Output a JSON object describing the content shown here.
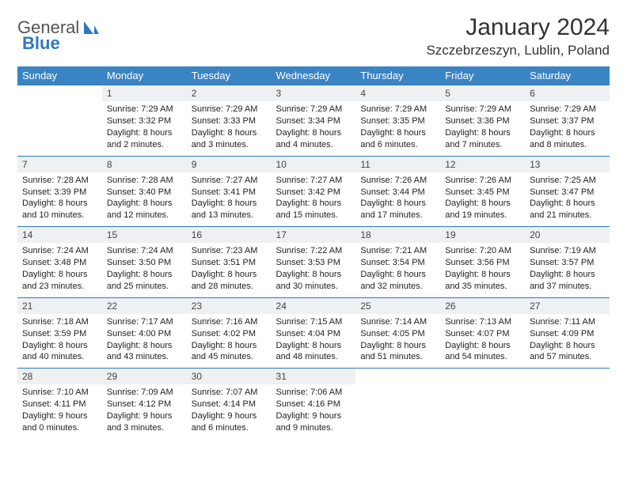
{
  "brand": {
    "word1": "General",
    "word2": "Blue"
  },
  "header": {
    "title": "January 2024",
    "location": "Szczebrzeszyn, Lublin, Poland"
  },
  "colors": {
    "header_bg": "#3b84c4",
    "header_text": "#ffffff",
    "daynum_bg": "#eef0f2",
    "rule": "#2f78c2",
    "text": "#222222",
    "page_bg": "#ffffff"
  },
  "weekdays": [
    "Sunday",
    "Monday",
    "Tuesday",
    "Wednesday",
    "Thursday",
    "Friday",
    "Saturday"
  ],
  "weeks": [
    [
      null,
      {
        "n": "1",
        "sr": "7:29 AM",
        "ss": "3:32 PM",
        "dl": "8 hours and 2 minutes."
      },
      {
        "n": "2",
        "sr": "7:29 AM",
        "ss": "3:33 PM",
        "dl": "8 hours and 3 minutes."
      },
      {
        "n": "3",
        "sr": "7:29 AM",
        "ss": "3:34 PM",
        "dl": "8 hours and 4 minutes."
      },
      {
        "n": "4",
        "sr": "7:29 AM",
        "ss": "3:35 PM",
        "dl": "8 hours and 6 minutes."
      },
      {
        "n": "5",
        "sr": "7:29 AM",
        "ss": "3:36 PM",
        "dl": "8 hours and 7 minutes."
      },
      {
        "n": "6",
        "sr": "7:29 AM",
        "ss": "3:37 PM",
        "dl": "8 hours and 8 minutes."
      }
    ],
    [
      {
        "n": "7",
        "sr": "7:28 AM",
        "ss": "3:39 PM",
        "dl": "8 hours and 10 minutes."
      },
      {
        "n": "8",
        "sr": "7:28 AM",
        "ss": "3:40 PM",
        "dl": "8 hours and 12 minutes."
      },
      {
        "n": "9",
        "sr": "7:27 AM",
        "ss": "3:41 PM",
        "dl": "8 hours and 13 minutes."
      },
      {
        "n": "10",
        "sr": "7:27 AM",
        "ss": "3:42 PM",
        "dl": "8 hours and 15 minutes."
      },
      {
        "n": "11",
        "sr": "7:26 AM",
        "ss": "3:44 PM",
        "dl": "8 hours and 17 minutes."
      },
      {
        "n": "12",
        "sr": "7:26 AM",
        "ss": "3:45 PM",
        "dl": "8 hours and 19 minutes."
      },
      {
        "n": "13",
        "sr": "7:25 AM",
        "ss": "3:47 PM",
        "dl": "8 hours and 21 minutes."
      }
    ],
    [
      {
        "n": "14",
        "sr": "7:24 AM",
        "ss": "3:48 PM",
        "dl": "8 hours and 23 minutes."
      },
      {
        "n": "15",
        "sr": "7:24 AM",
        "ss": "3:50 PM",
        "dl": "8 hours and 25 minutes."
      },
      {
        "n": "16",
        "sr": "7:23 AM",
        "ss": "3:51 PM",
        "dl": "8 hours and 28 minutes."
      },
      {
        "n": "17",
        "sr": "7:22 AM",
        "ss": "3:53 PM",
        "dl": "8 hours and 30 minutes."
      },
      {
        "n": "18",
        "sr": "7:21 AM",
        "ss": "3:54 PM",
        "dl": "8 hours and 32 minutes."
      },
      {
        "n": "19",
        "sr": "7:20 AM",
        "ss": "3:56 PM",
        "dl": "8 hours and 35 minutes."
      },
      {
        "n": "20",
        "sr": "7:19 AM",
        "ss": "3:57 PM",
        "dl": "8 hours and 37 minutes."
      }
    ],
    [
      {
        "n": "21",
        "sr": "7:18 AM",
        "ss": "3:59 PM",
        "dl": "8 hours and 40 minutes."
      },
      {
        "n": "22",
        "sr": "7:17 AM",
        "ss": "4:00 PM",
        "dl": "8 hours and 43 minutes."
      },
      {
        "n": "23",
        "sr": "7:16 AM",
        "ss": "4:02 PM",
        "dl": "8 hours and 45 minutes."
      },
      {
        "n": "24",
        "sr": "7:15 AM",
        "ss": "4:04 PM",
        "dl": "8 hours and 48 minutes."
      },
      {
        "n": "25",
        "sr": "7:14 AM",
        "ss": "4:05 PM",
        "dl": "8 hours and 51 minutes."
      },
      {
        "n": "26",
        "sr": "7:13 AM",
        "ss": "4:07 PM",
        "dl": "8 hours and 54 minutes."
      },
      {
        "n": "27",
        "sr": "7:11 AM",
        "ss": "4:09 PM",
        "dl": "8 hours and 57 minutes."
      }
    ],
    [
      {
        "n": "28",
        "sr": "7:10 AM",
        "ss": "4:11 PM",
        "dl": "9 hours and 0 minutes."
      },
      {
        "n": "29",
        "sr": "7:09 AM",
        "ss": "4:12 PM",
        "dl": "9 hours and 3 minutes."
      },
      {
        "n": "30",
        "sr": "7:07 AM",
        "ss": "4:14 PM",
        "dl": "9 hours and 6 minutes."
      },
      {
        "n": "31",
        "sr": "7:06 AM",
        "ss": "4:16 PM",
        "dl": "9 hours and 9 minutes."
      },
      null,
      null,
      null
    ]
  ],
  "labels": {
    "sunrise": "Sunrise: ",
    "sunset": "Sunset: ",
    "daylight": "Daylight: "
  }
}
